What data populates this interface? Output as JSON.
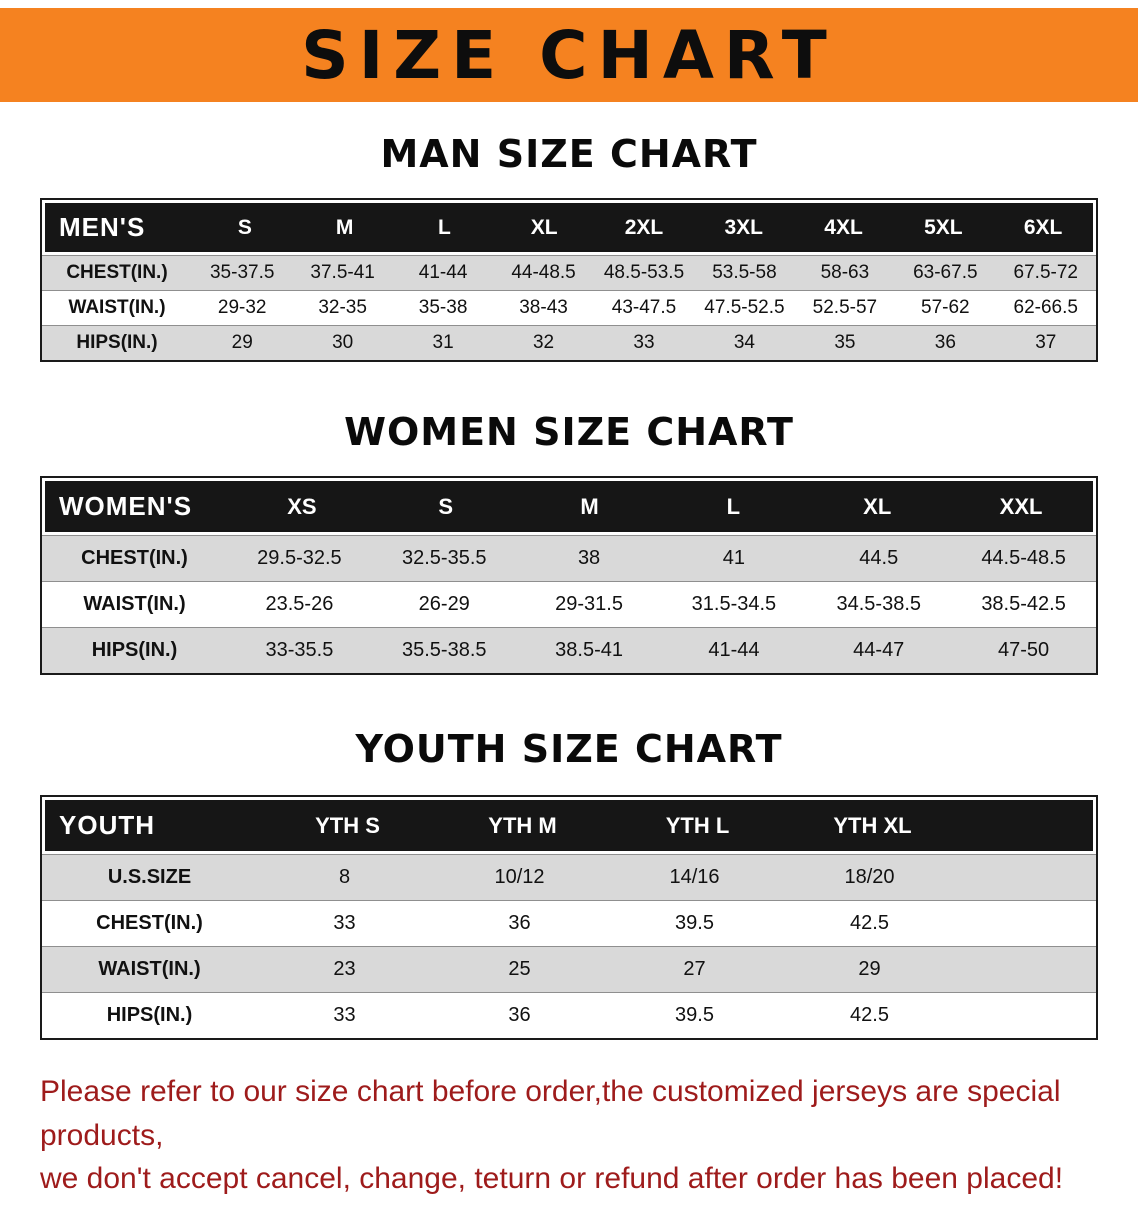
{
  "colors": {
    "banner_orange": "#F58220",
    "table_header_black": "#161616",
    "row_gray": "#d9d9d9",
    "disclaimer_red": "#9E1B1B"
  },
  "banner": {
    "title": "SIZE CHART"
  },
  "men": {
    "heading": "MAN SIZE CHART",
    "header": [
      "MEN'S",
      "S",
      "M",
      "L",
      "XL",
      "2XL",
      "3XL",
      "4XL",
      "5XL",
      "6XL"
    ],
    "rows": [
      {
        "label": "CHEST(IN.)",
        "values": [
          "35-37.5",
          "37.5-41",
          "41-44",
          "44-48.5",
          "48.5-53.5",
          "53.5-58",
          "58-63",
          "63-67.5",
          "67.5-72"
        ]
      },
      {
        "label": "WAIST(IN.)",
        "values": [
          "29-32",
          "32-35",
          "35-38",
          "38-43",
          "43-47.5",
          "47.5-52.5",
          "52.5-57",
          "57-62",
          "62-66.5"
        ]
      },
      {
        "label": "HIPS(IN.)",
        "values": [
          "29",
          "30",
          "31",
          "32",
          "33",
          "34",
          "35",
          "36",
          "37"
        ]
      }
    ]
  },
  "women": {
    "heading": "WOMEN SIZE CHART",
    "header": [
      "WOMEN'S",
      "XS",
      "S",
      "M",
      "L",
      "XL",
      "XXL"
    ],
    "rows": [
      {
        "label": "CHEST(IN.)",
        "values": [
          "29.5-32.5",
          "32.5-35.5",
          "38",
          "41",
          "44.5",
          "44.5-48.5"
        ]
      },
      {
        "label": "WAIST(IN.)",
        "values": [
          "23.5-26",
          "26-29",
          "29-31.5",
          "31.5-34.5",
          "34.5-38.5",
          "38.5-42.5"
        ]
      },
      {
        "label": "HIPS(IN.)",
        "values": [
          "33-35.5",
          "35.5-38.5",
          "38.5-41",
          "41-44",
          "44-47",
          "47-50"
        ]
      }
    ]
  },
  "youth": {
    "heading": "YOUTH SIZE CHART",
    "header": [
      "YOUTH",
      "YTH S",
      "YTH M",
      "YTH L",
      "YTH XL"
    ],
    "rows": [
      {
        "label": "U.S.SIZE",
        "values": [
          "8",
          "10/12",
          "14/16",
          "18/20"
        ]
      },
      {
        "label": "CHEST(IN.)",
        "values": [
          "33",
          "36",
          "39.5",
          "42.5"
        ]
      },
      {
        "label": "WAIST(IN.)",
        "values": [
          "23",
          "25",
          "27",
          "29"
        ]
      },
      {
        "label": "HIPS(IN.)",
        "values": [
          "33",
          "36",
          "39.5",
          "42.5"
        ]
      }
    ]
  },
  "disclaimer": {
    "line1": "Please refer to our size chart before order,the customized jerseys are special products,",
    "line2": "we don't accept cancel, change, teturn or refund after order has been placed!"
  }
}
